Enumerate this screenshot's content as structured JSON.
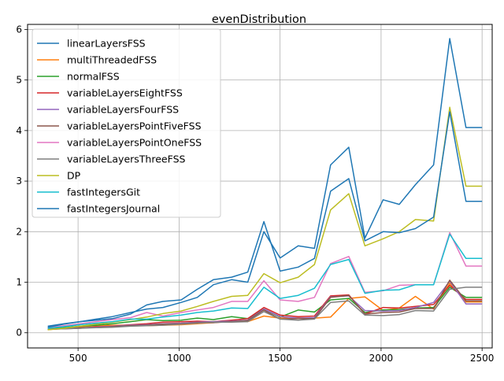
{
  "chart_data": {
    "type": "line",
    "title": "evenDistribution",
    "xlabel": "",
    "ylabel": "",
    "xlim": [
      250,
      2550
    ],
    "ylim": [
      -0.3,
      6.1
    ],
    "xticks": [
      500,
      1000,
      1500,
      2000,
      2500
    ],
    "yticks": [
      0,
      1,
      2,
      3,
      4,
      5,
      6
    ],
    "grid": true,
    "legend_position": "upper-left",
    "x": [
      350,
      430,
      510,
      590,
      670,
      760,
      840,
      920,
      1010,
      1090,
      1170,
      1260,
      1340,
      1420,
      1500,
      1590,
      1670,
      1750,
      1840,
      1920,
      2010,
      2090,
      2170,
      2260,
      2340,
      2420,
      2500
    ],
    "series": [
      {
        "name": "linearLayersFSS",
        "color": "#1f77b4",
        "values": [
          0.13,
          0.18,
          0.22,
          0.27,
          0.32,
          0.4,
          0.47,
          0.5,
          0.6,
          0.7,
          0.95,
          1.05,
          1.0,
          2.0,
          1.48,
          1.72,
          1.67,
          3.32,
          3.67,
          1.87,
          2.63,
          2.54,
          2.93,
          3.32,
          5.82,
          4.06,
          4.06
        ]
      },
      {
        "name": "multiThreadedFSS",
        "color": "#ff7f0e",
        "values": [
          0.06,
          0.09,
          0.12,
          0.14,
          0.15,
          0.15,
          0.14,
          0.15,
          0.16,
          0.18,
          0.2,
          0.23,
          0.22,
          0.33,
          0.29,
          0.3,
          0.29,
          0.31,
          0.68,
          0.71,
          0.44,
          0.49,
          0.72,
          0.47,
          0.98,
          0.61,
          0.61
        ]
      },
      {
        "name": "normalFSS",
        "color": "#2ca02c",
        "values": [
          0.07,
          0.1,
          0.13,
          0.15,
          0.18,
          0.22,
          0.26,
          0.24,
          0.25,
          0.29,
          0.26,
          0.32,
          0.28,
          0.47,
          0.31,
          0.45,
          0.41,
          0.65,
          0.68,
          0.4,
          0.45,
          0.46,
          0.49,
          0.5,
          0.9,
          0.7,
          0.7
        ]
      },
      {
        "name": "variableLayersEightFSS",
        "color": "#d62728",
        "values": [
          0.07,
          0.08,
          0.09,
          0.12,
          0.13,
          0.16,
          0.18,
          0.21,
          0.22,
          0.23,
          0.22,
          0.25,
          0.28,
          0.5,
          0.35,
          0.32,
          0.33,
          0.73,
          0.75,
          0.37,
          0.5,
          0.49,
          0.52,
          0.56,
          0.94,
          0.66,
          0.66
        ]
      },
      {
        "name": "variableLayersFourFSS",
        "color": "#9467bd",
        "values": [
          0.07,
          0.08,
          0.1,
          0.11,
          0.13,
          0.15,
          0.16,
          0.18,
          0.19,
          0.21,
          0.22,
          0.23,
          0.25,
          0.47,
          0.32,
          0.29,
          0.3,
          0.71,
          0.73,
          0.44,
          0.43,
          0.44,
          0.5,
          0.6,
          1.02,
          0.57,
          0.57
        ]
      },
      {
        "name": "variableLayersPointFiveFSS",
        "color": "#8c564b",
        "values": [
          0.07,
          0.08,
          0.1,
          0.1,
          0.12,
          0.14,
          0.15,
          0.17,
          0.18,
          0.2,
          0.2,
          0.22,
          0.24,
          0.45,
          0.27,
          0.28,
          0.28,
          0.7,
          0.74,
          0.37,
          0.4,
          0.41,
          0.48,
          0.48,
          1.04,
          0.63,
          0.63
        ]
      },
      {
        "name": "variableLayersPointOneFSS",
        "color": "#e377c2",
        "values": [
          0.1,
          0.14,
          0.18,
          0.22,
          0.26,
          0.3,
          0.4,
          0.33,
          0.4,
          0.45,
          0.5,
          0.62,
          0.62,
          1.03,
          0.65,
          0.62,
          0.7,
          1.37,
          1.51,
          0.8,
          0.83,
          0.94,
          0.95,
          0.95,
          1.98,
          1.32,
          1.32
        ]
      },
      {
        "name": "variableLayersThreeFSS",
        "color": "#7f7f7f",
        "values": [
          0.07,
          0.08,
          0.09,
          0.1,
          0.11,
          0.13,
          0.14,
          0.15,
          0.17,
          0.19,
          0.21,
          0.21,
          0.22,
          0.42,
          0.27,
          0.25,
          0.27,
          0.6,
          0.63,
          0.35,
          0.34,
          0.36,
          0.44,
          0.43,
          0.86,
          0.9,
          0.9
        ]
      },
      {
        "name": "DP",
        "color": "#bcbd22",
        "values": [
          0.06,
          0.09,
          0.13,
          0.17,
          0.21,
          0.26,
          0.31,
          0.38,
          0.43,
          0.52,
          0.62,
          0.72,
          0.74,
          1.17,
          0.99,
          1.1,
          1.35,
          2.43,
          2.75,
          1.72,
          1.86,
          2.0,
          2.24,
          2.21,
          4.46,
          2.9,
          2.9
        ]
      },
      {
        "name": "fastIntegersGit",
        "color": "#17becf",
        "values": [
          0.09,
          0.12,
          0.16,
          0.19,
          0.22,
          0.27,
          0.27,
          0.31,
          0.35,
          0.4,
          0.43,
          0.49,
          0.48,
          0.9,
          0.68,
          0.74,
          0.88,
          1.35,
          1.45,
          0.78,
          0.84,
          0.85,
          0.95,
          0.95,
          1.95,
          1.47,
          1.47
        ]
      },
      {
        "name": "fastIntegersJournal",
        "color": "#1f77b4",
        "values": [
          0.11,
          0.17,
          0.22,
          0.25,
          0.28,
          0.37,
          0.55,
          0.62,
          0.65,
          0.86,
          1.05,
          1.1,
          1.2,
          2.2,
          1.22,
          1.3,
          1.47,
          2.8,
          3.05,
          1.82,
          2.0,
          1.98,
          2.06,
          2.29,
          4.37,
          2.6,
          2.6
        ]
      }
    ]
  }
}
